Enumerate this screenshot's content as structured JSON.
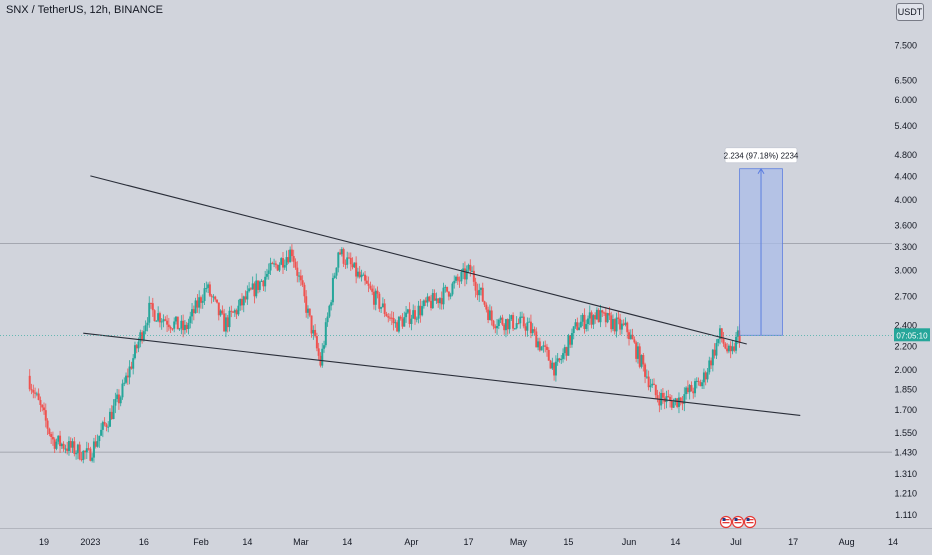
{
  "header": {
    "symbol_title": "SNX / TetherUS, 12h, BINANCE",
    "currency": "USDT"
  },
  "colors": {
    "background": "#d1d4dc",
    "up_candle": "#26a69a",
    "down_candle": "#ef5350",
    "trendline": "#2a2e39",
    "measure_fill": "#a9bce8",
    "measure_line": "#5c7ee0",
    "price_label": "#26a69a",
    "axis_text": "#131722"
  },
  "chart_data": {
    "type": "candlestick",
    "title": "SNX / TetherUS, 12h, BINANCE",
    "y_scale": "log",
    "ylim": [
      1.05,
      9.0
    ],
    "y_ticks": [
      "7.500",
      "6.500",
      "6.000",
      "5.400",
      "4.800",
      "4.400",
      "4.000",
      "3.600",
      "3.300",
      "3.000",
      "2.700",
      "2.400",
      "2.200",
      "2.000",
      "1.850",
      "1.700",
      "1.550",
      "1.430",
      "1.310",
      "1.210",
      "1.110"
    ],
    "x_ticks": [
      "19",
      "2023",
      "16",
      "Feb",
      "14",
      "Mar",
      "14",
      "Apr",
      "17",
      "May",
      "15",
      "Jun",
      "14",
      "Jul",
      "17",
      "Aug",
      "14"
    ],
    "x_tick_dates": [
      "2022-12-19",
      "2023-01-01",
      "2023-01-16",
      "2023-02-01",
      "2023-02-14",
      "2023-03-01",
      "2023-03-14",
      "2023-04-01",
      "2023-04-17",
      "2023-05-01",
      "2023-05-15",
      "2023-06-01",
      "2023-06-14",
      "2023-07-01",
      "2023-07-17",
      "2023-08-01",
      "2023-08-14"
    ],
    "current_price_label": "07:05:10",
    "current_price": 2.3,
    "horizontal_lines": [
      3.34,
      1.43
    ],
    "trendlines": [
      {
        "name": "upper",
        "from": {
          "date": "2023-01-01",
          "price": 4.4
        },
        "to": {
          "date": "2023-07-04",
          "price": 2.22
        }
      },
      {
        "name": "lower",
        "from": {
          "date": "2022-12-30",
          "price": 2.32
        },
        "to": {
          "date": "2023-07-19",
          "price": 1.66
        }
      }
    ],
    "measure": {
      "label": "2.234 (97.18%) 2234",
      "from_date": "2023-07-02",
      "to_date": "2023-07-14",
      "price_low": 2.3,
      "price_high": 4.53
    },
    "key_points": [
      {
        "date": "2022-12-15",
        "price": 1.95
      },
      {
        "date": "2022-12-22",
        "price": 1.5
      },
      {
        "date": "2023-01-01",
        "price": 1.41
      },
      {
        "date": "2023-01-10",
        "price": 1.8
      },
      {
        "date": "2023-01-18",
        "price": 2.55
      },
      {
        "date": "2023-01-28",
        "price": 2.35
      },
      {
        "date": "2023-02-03",
        "price": 2.8
      },
      {
        "date": "2023-02-08",
        "price": 2.4
      },
      {
        "date": "2023-02-20",
        "price": 2.95
      },
      {
        "date": "2023-02-27",
        "price": 3.25
      },
      {
        "date": "2023-03-07",
        "price": 2.05
      },
      {
        "date": "2023-03-12",
        "price": 3.25
      },
      {
        "date": "2023-03-20",
        "price": 2.8
      },
      {
        "date": "2023-03-28",
        "price": 2.4
      },
      {
        "date": "2023-04-10",
        "price": 2.7
      },
      {
        "date": "2023-04-18",
        "price": 3.0
      },
      {
        "date": "2023-04-24",
        "price": 2.45
      },
      {
        "date": "2023-05-04",
        "price": 2.4
      },
      {
        "date": "2023-05-12",
        "price": 2.0
      },
      {
        "date": "2023-05-18",
        "price": 2.4
      },
      {
        "date": "2023-05-23",
        "price": 2.5
      },
      {
        "date": "2023-06-01",
        "price": 2.35
      },
      {
        "date": "2023-06-09",
        "price": 1.8
      },
      {
        "date": "2023-06-14",
        "price": 1.75
      },
      {
        "date": "2023-06-22",
        "price": 1.9
      },
      {
        "date": "2023-06-27",
        "price": 2.3
      },
      {
        "date": "2023-06-30",
        "price": 2.1
      },
      {
        "date": "2023-07-02",
        "price": 2.3
      }
    ]
  }
}
